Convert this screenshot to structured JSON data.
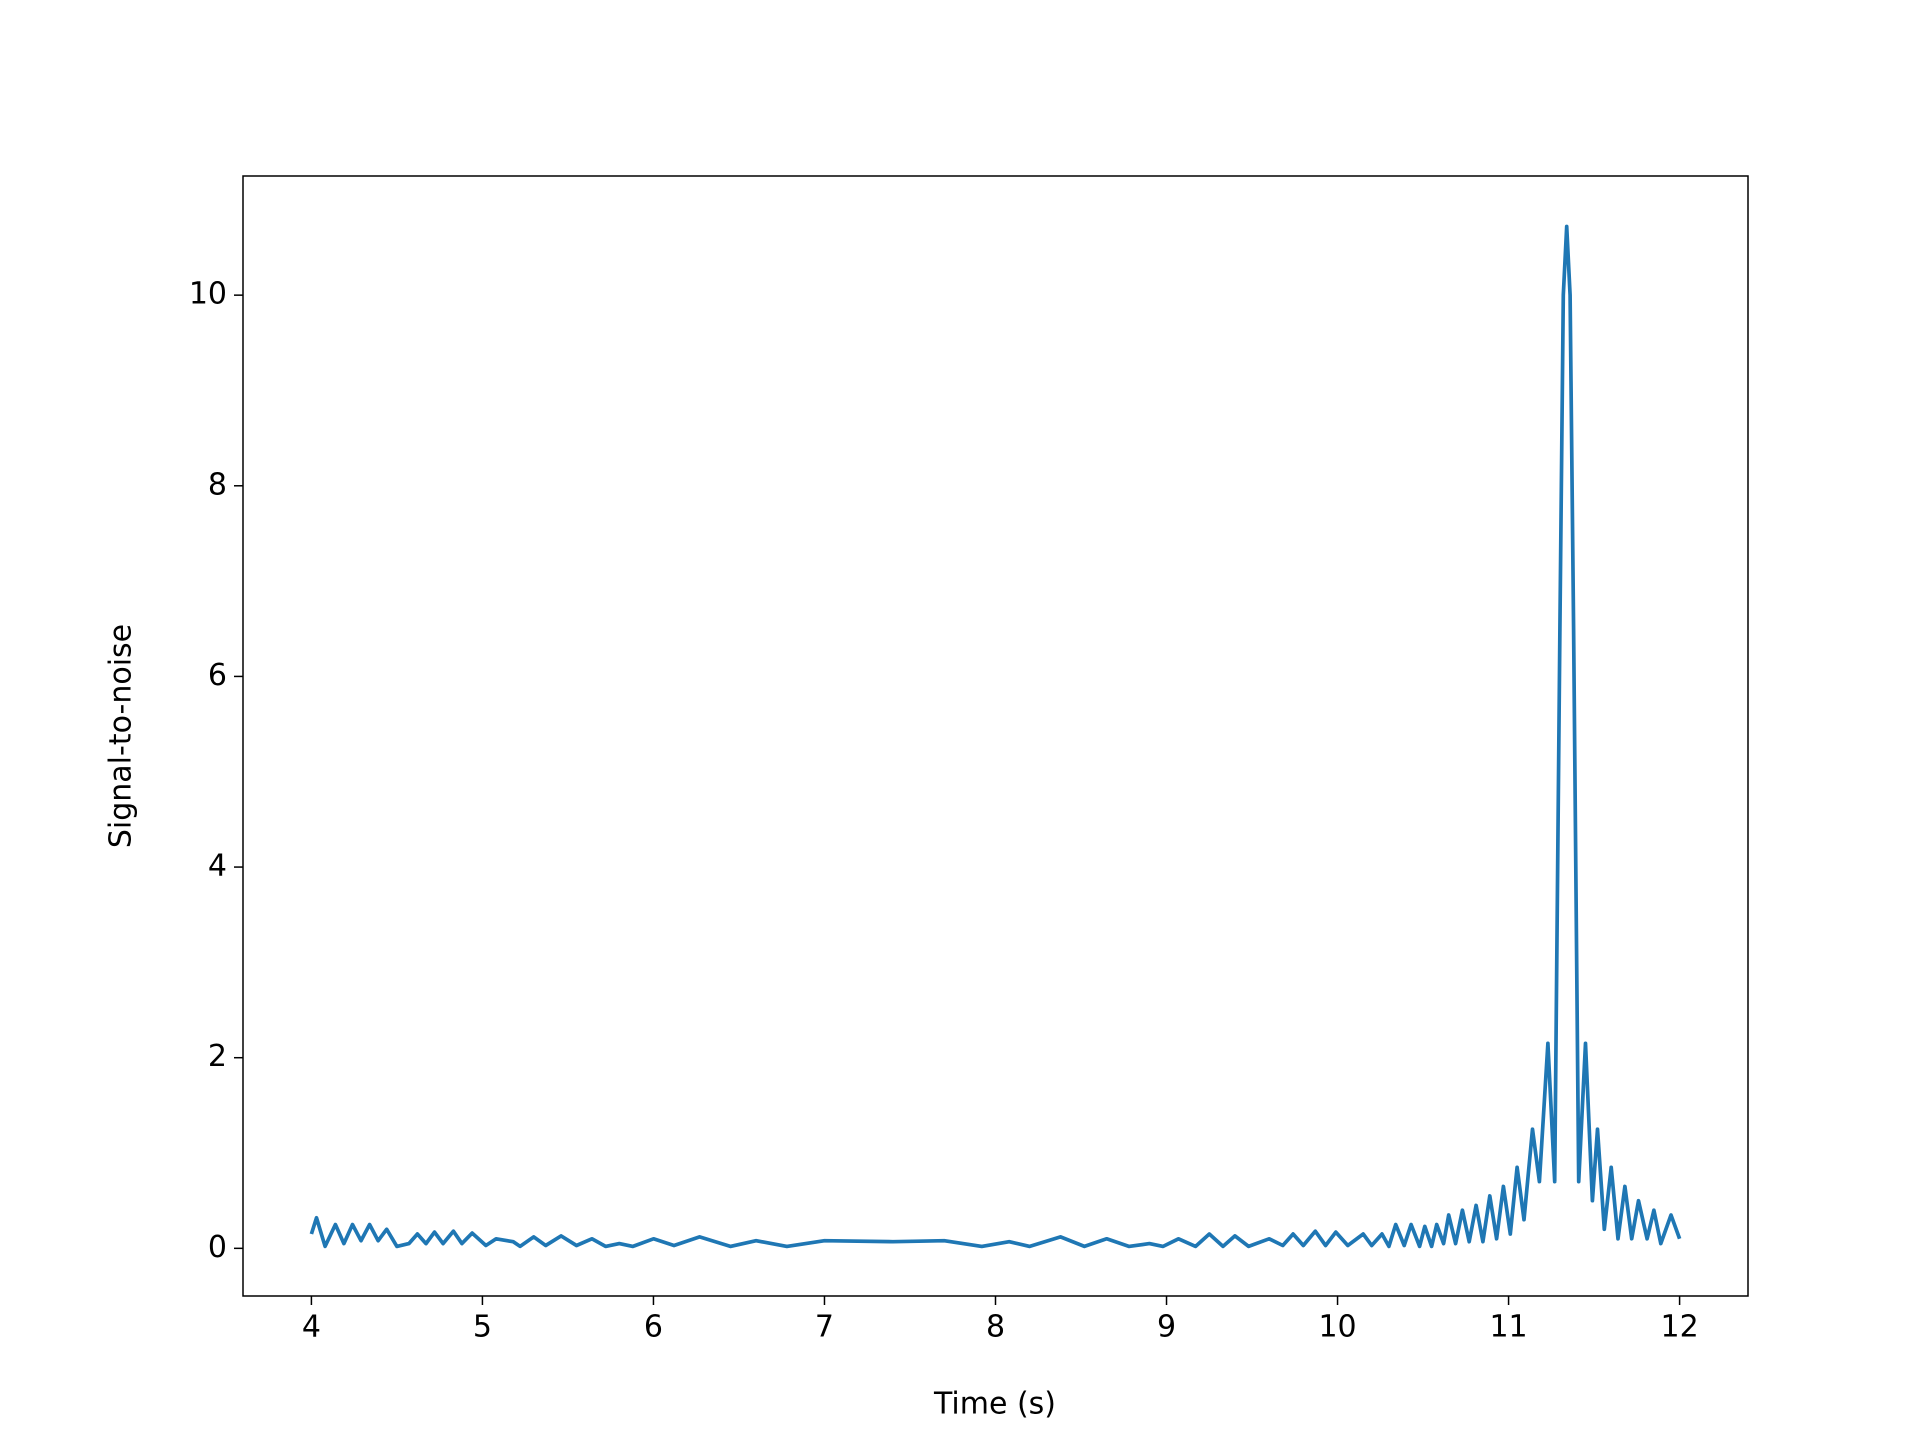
{
  "chart_data": {
    "type": "line",
    "x_label": "Time (s)",
    "y_label": "Signal-to-noise",
    "color": "#1f77b4",
    "x": [
      4.0,
      4.03,
      4.08,
      4.14,
      4.19,
      4.24,
      4.29,
      4.34,
      4.39,
      4.44,
      4.5,
      4.57,
      4.62,
      4.67,
      4.72,
      4.77,
      4.83,
      4.88,
      4.94,
      5.02,
      5.08,
      5.18,
      5.22,
      5.3,
      5.37,
      5.46,
      5.55,
      5.64,
      5.72,
      5.8,
      5.88,
      6.0,
      6.12,
      6.27,
      6.45,
      6.6,
      6.78,
      7.0,
      7.4,
      7.7,
      7.92,
      8.08,
      8.2,
      8.38,
      8.52,
      8.65,
      8.78,
      8.9,
      8.98,
      9.07,
      9.17,
      9.25,
      9.33,
      9.4,
      9.48,
      9.6,
      9.68,
      9.74,
      9.8,
      9.87,
      9.93,
      9.99,
      10.06,
      10.15,
      10.2,
      10.26,
      10.3,
      10.34,
      10.39,
      10.43,
      10.48,
      10.51,
      10.55,
      10.58,
      10.62,
      10.65,
      10.69,
      10.73,
      10.77,
      10.81,
      10.85,
      10.89,
      10.93,
      10.97,
      11.01,
      11.05,
      11.09,
      11.14,
      11.18,
      11.23,
      11.27,
      11.3,
      11.32,
      11.34,
      11.36,
      11.38,
      11.41,
      11.45,
      11.49,
      11.52,
      11.56,
      11.6,
      11.64,
      11.68,
      11.72,
      11.76,
      11.81,
      11.85,
      11.89,
      11.95,
      12.0
    ],
    "values": [
      0.15,
      0.32,
      0.02,
      0.25,
      0.05,
      0.25,
      0.08,
      0.25,
      0.08,
      0.2,
      0.02,
      0.05,
      0.15,
      0.05,
      0.17,
      0.05,
      0.18,
      0.05,
      0.16,
      0.03,
      0.1,
      0.07,
      0.02,
      0.12,
      0.03,
      0.13,
      0.03,
      0.1,
      0.02,
      0.05,
      0.02,
      0.1,
      0.03,
      0.12,
      0.02,
      0.08,
      0.02,
      0.08,
      0.07,
      0.08,
      0.02,
      0.07,
      0.02,
      0.12,
      0.02,
      0.1,
      0.02,
      0.05,
      0.02,
      0.1,
      0.02,
      0.15,
      0.02,
      0.13,
      0.02,
      0.1,
      0.03,
      0.15,
      0.03,
      0.18,
      0.03,
      0.17,
      0.03,
      0.15,
      0.03,
      0.15,
      0.02,
      0.25,
      0.03,
      0.25,
      0.02,
      0.23,
      0.02,
      0.25,
      0.05,
      0.35,
      0.05,
      0.4,
      0.07,
      0.45,
      0.07,
      0.55,
      0.1,
      0.65,
      0.15,
      0.85,
      0.3,
      1.25,
      0.7,
      2.15,
      0.7,
      6.5,
      10,
      10.72,
      10,
      6.5,
      0.7,
      2.15,
      0.5,
      1.25,
      0.2,
      0.85,
      0.1,
      0.65,
      0.1,
      0.5,
      0.1,
      0.4,
      0.05,
      0.35,
      0.1
    ],
    "xlim": [
      3.6,
      12.4
    ],
    "ylim": [
      -0.5,
      11.25
    ],
    "xticks": [
      4,
      5,
      6,
      7,
      8,
      9,
      10,
      11,
      12
    ],
    "yticks": [
      0,
      2,
      4,
      6,
      8,
      10
    ]
  }
}
